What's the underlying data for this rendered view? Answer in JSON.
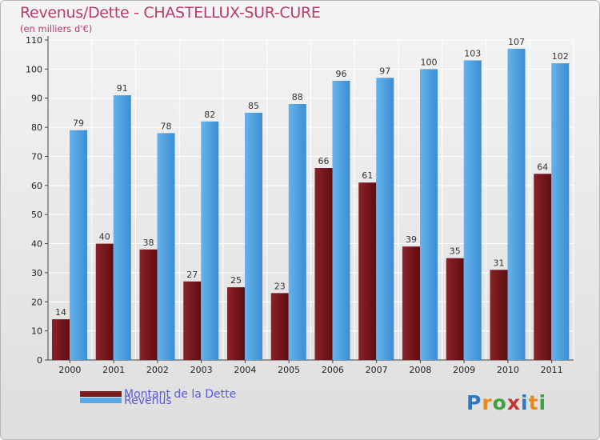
{
  "header": {
    "title": "Revenus/Dette - CHASTELLUX-SUR-CURE",
    "subtitle": "(en milliers d'€)"
  },
  "legend": {
    "dette": "Montant de la Dette",
    "revenus": "Revenus"
  },
  "logo": {
    "letters": [
      "P",
      "r",
      "o",
      "x",
      "i",
      "t",
      "i"
    ],
    "colors": [
      "#2a78c8",
      "#e88a1a",
      "#3da13d",
      "#c23535",
      "#2a78c8",
      "#e88a1a",
      "#3da13d"
    ]
  },
  "colors": {
    "dette": "#7a1a1f",
    "dette_dark": "#5e0d12",
    "revenus": "#5aa8e6",
    "revenus_dark": "#2f83cc",
    "title": "#b83d6e",
    "legend_text": "#5b5bdb"
  },
  "chart_data": {
    "type": "bar",
    "categories": [
      "2000",
      "2001",
      "2002",
      "2003",
      "2004",
      "2005",
      "2006",
      "2007",
      "2008",
      "2009",
      "2010",
      "2011"
    ],
    "series": [
      {
        "name": "Montant de la Dette",
        "values": [
          14,
          40,
          38,
          27,
          25,
          23,
          66,
          61,
          39,
          35,
          31,
          64
        ]
      },
      {
        "name": "Revenus",
        "values": [
          79,
          91,
          78,
          82,
          85,
          88,
          96,
          97,
          100,
          103,
          107,
          102
        ]
      }
    ],
    "title": "Revenus/Dette - CHASTELLUX-SUR-CURE",
    "ylabel": "(en milliers d'€)",
    "ylim": [
      0,
      110
    ],
    "yticks": [
      0,
      10,
      20,
      30,
      40,
      50,
      60,
      70,
      80,
      90,
      100,
      110
    ],
    "grid": true,
    "legend": "bottom-left"
  }
}
